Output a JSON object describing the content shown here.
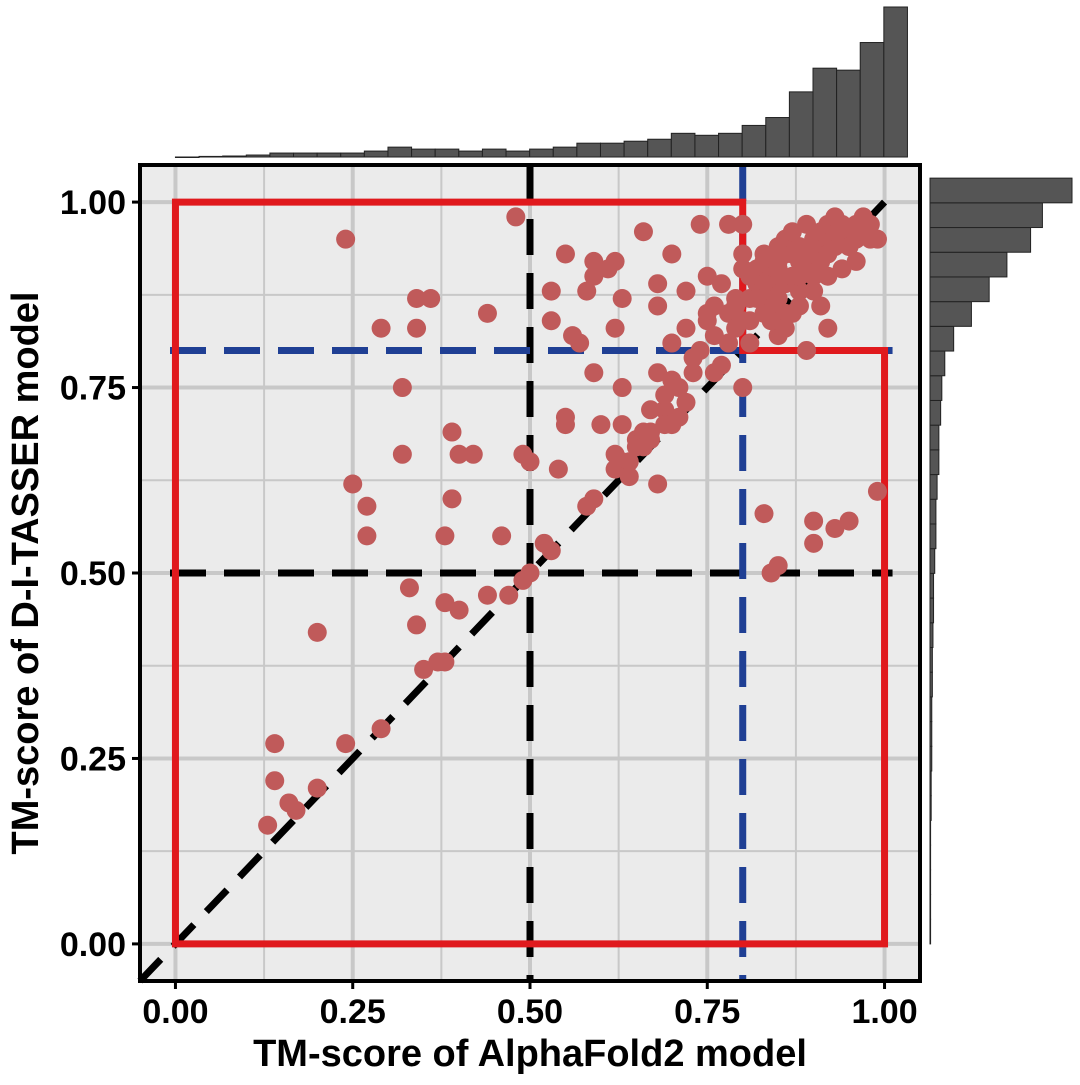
{
  "chart_data": {
    "type": "scatter",
    "xlabel": "TM-score of AlphaFold2 model",
    "ylabel": "TM-score of D-I-TASSER model",
    "xlim": [
      -0.05,
      1.05
    ],
    "ylim": [
      -0.05,
      1.05
    ],
    "xticks": [
      "0.00",
      "0.25",
      "0.50",
      "0.75",
      "1.00"
    ],
    "yticks": [
      "0.00",
      "0.25",
      "0.50",
      "0.75",
      "1.00"
    ],
    "grid": true,
    "colors": {
      "point": "#c05a5a",
      "region": "#e0191d",
      "cutoff_05": "#000000",
      "cutoff_08": "#1f3f94",
      "histogram": "#555555",
      "panel": "#ebebeb",
      "gridline": "#c8c8c8"
    },
    "reference_lines": {
      "diagonal": true,
      "cutoff_black": 0.5,
      "cutoff_blue": 0.8
    },
    "region_outline": [
      [
        0,
        0
      ],
      [
        0,
        1.0
      ],
      [
        0.8,
        1.0
      ],
      [
        0.8,
        0.8
      ],
      [
        1.0,
        0.8
      ],
      [
        1.0,
        0
      ]
    ],
    "x_histogram": {
      "bin_start": 0.0,
      "bin_width": 0.0333,
      "counts": [
        0,
        0.3,
        0.5,
        1,
        2,
        2,
        2,
        2,
        3,
        5,
        4,
        4,
        3,
        4,
        3,
        4,
        5,
        7,
        7,
        8,
        9,
        12,
        11,
        12,
        16,
        20,
        33,
        45,
        44,
        58,
        76
      ]
    },
    "y_histogram": {
      "bin_start": 0.0,
      "bin_width": 0.0333,
      "counts": [
        0.1,
        0.1,
        0.1,
        0.1,
        0.1,
        0.2,
        0.2,
        0.3,
        0.3,
        0.3,
        0.4,
        0.4,
        0.5,
        0.6,
        0.6,
        0.8,
        1.0,
        1.0,
        1.2,
        1.5,
        1.5,
        1.8,
        2.0,
        2.5,
        4.0,
        7.0,
        10,
        13,
        17,
        19,
        24
      ]
    },
    "points": [
      [
        0.13,
        0.16
      ],
      [
        0.14,
        0.27
      ],
      [
        0.14,
        0.22
      ],
      [
        0.16,
        0.19
      ],
      [
        0.17,
        0.18
      ],
      [
        0.2,
        0.21
      ],
      [
        0.2,
        0.42
      ],
      [
        0.24,
        0.27
      ],
      [
        0.25,
        0.62
      ],
      [
        0.24,
        0.95
      ],
      [
        0.27,
        0.59
      ],
      [
        0.27,
        0.55
      ],
      [
        0.29,
        0.83
      ],
      [
        0.29,
        0.29
      ],
      [
        0.32,
        0.75
      ],
      [
        0.32,
        0.66
      ],
      [
        0.33,
        0.48
      ],
      [
        0.34,
        0.87
      ],
      [
        0.36,
        0.87
      ],
      [
        0.34,
        0.83
      ],
      [
        0.34,
        0.43
      ],
      [
        0.35,
        0.37
      ],
      [
        0.37,
        0.38
      ],
      [
        0.38,
        0.38
      ],
      [
        0.38,
        0.55
      ],
      [
        0.38,
        0.46
      ],
      [
        0.39,
        0.6
      ],
      [
        0.39,
        0.69
      ],
      [
        0.4,
        0.66
      ],
      [
        0.42,
        0.66
      ],
      [
        0.4,
        0.45
      ],
      [
        0.44,
        0.85
      ],
      [
        0.44,
        0.47
      ],
      [
        0.46,
        0.55
      ],
      [
        0.47,
        0.47
      ],
      [
        0.48,
        0.98
      ],
      [
        0.49,
        0.49
      ],
      [
        0.49,
        0.66
      ],
      [
        0.5,
        0.65
      ],
      [
        0.5,
        0.5
      ],
      [
        0.52,
        0.54
      ],
      [
        0.53,
        0.53
      ],
      [
        0.53,
        0.84
      ],
      [
        0.53,
        0.88
      ],
      [
        0.54,
        0.64
      ],
      [
        0.55,
        0.93
      ],
      [
        0.55,
        0.71
      ],
      [
        0.55,
        0.7
      ],
      [
        0.56,
        0.82
      ],
      [
        0.57,
        0.81
      ],
      [
        0.58,
        0.59
      ],
      [
        0.58,
        0.88
      ],
      [
        0.59,
        0.92
      ],
      [
        0.59,
        0.9
      ],
      [
        0.59,
        0.77
      ],
      [
        0.59,
        0.6
      ],
      [
        0.6,
        0.7
      ],
      [
        0.61,
        0.91
      ],
      [
        0.62,
        0.92
      ],
      [
        0.62,
        0.83
      ],
      [
        0.62,
        0.66
      ],
      [
        0.62,
        0.64
      ],
      [
        0.63,
        0.87
      ],
      [
        0.63,
        0.75
      ],
      [
        0.63,
        0.65
      ],
      [
        0.63,
        0.7
      ],
      [
        0.64,
        0.65
      ],
      [
        0.64,
        0.63
      ],
      [
        0.65,
        0.68
      ],
      [
        0.65,
        0.67
      ],
      [
        0.66,
        0.96
      ],
      [
        0.66,
        0.69
      ],
      [
        0.66,
        0.67
      ],
      [
        0.67,
        0.72
      ],
      [
        0.67,
        0.69
      ],
      [
        0.67,
        0.68
      ],
      [
        0.68,
        0.62
      ],
      [
        0.68,
        0.77
      ],
      [
        0.68,
        0.89
      ],
      [
        0.68,
        0.86
      ],
      [
        0.69,
        0.72
      ],
      [
        0.69,
        0.74
      ],
      [
        0.69,
        0.7
      ],
      [
        0.7,
        0.93
      ],
      [
        0.7,
        0.76
      ],
      [
        0.7,
        0.81
      ],
      [
        0.7,
        0.7
      ],
      [
        0.71,
        0.71
      ],
      [
        0.71,
        0.75
      ],
      [
        0.72,
        0.83
      ],
      [
        0.72,
        0.88
      ],
      [
        0.72,
        0.73
      ],
      [
        0.73,
        0.79
      ],
      [
        0.73,
        0.77
      ],
      [
        0.74,
        0.97
      ],
      [
        0.74,
        0.8
      ],
      [
        0.75,
        0.84
      ],
      [
        0.75,
        0.85
      ],
      [
        0.75,
        0.9
      ],
      [
        0.76,
        0.82
      ],
      [
        0.76,
        0.77
      ],
      [
        0.77,
        0.89
      ],
      [
        0.77,
        0.78
      ],
      [
        0.78,
        0.81
      ],
      [
        0.78,
        0.85
      ],
      [
        0.79,
        0.87
      ],
      [
        0.79,
        0.83
      ],
      [
        0.8,
        0.75
      ],
      [
        0.8,
        0.97
      ],
      [
        0.8,
        0.93
      ],
      [
        0.81,
        0.81
      ],
      [
        0.81,
        0.84
      ],
      [
        0.81,
        0.87
      ],
      [
        0.82,
        0.89
      ],
      [
        0.82,
        0.91
      ],
      [
        0.83,
        0.85
      ],
      [
        0.83,
        0.92
      ],
      [
        0.83,
        0.93
      ],
      [
        0.84,
        0.86
      ],
      [
        0.84,
        0.88
      ],
      [
        0.84,
        0.9
      ],
      [
        0.85,
        0.94
      ],
      [
        0.85,
        0.87
      ],
      [
        0.85,
        0.91
      ],
      [
        0.86,
        0.89
      ],
      [
        0.86,
        0.93
      ],
      [
        0.86,
        0.95
      ],
      [
        0.87,
        0.9
      ],
      [
        0.87,
        0.85
      ],
      [
        0.87,
        0.96
      ],
      [
        0.88,
        0.92
      ],
      [
        0.88,
        0.88
      ],
      [
        0.88,
        0.94
      ],
      [
        0.89,
        0.91
      ],
      [
        0.89,
        0.93
      ],
      [
        0.89,
        0.97
      ],
      [
        0.9,
        0.93
      ],
      [
        0.9,
        0.95
      ],
      [
        0.9,
        0.9
      ],
      [
        0.91,
        0.94
      ],
      [
        0.91,
        0.96
      ],
      [
        0.91,
        0.92
      ],
      [
        0.92,
        0.95
      ],
      [
        0.92,
        0.97
      ],
      [
        0.92,
        0.93
      ],
      [
        0.93,
        0.94
      ],
      [
        0.93,
        0.96
      ],
      [
        0.93,
        0.98
      ],
      [
        0.94,
        0.95
      ],
      [
        0.94,
        0.97
      ],
      [
        0.95,
        0.96
      ],
      [
        0.95,
        0.94
      ],
      [
        0.96,
        0.97
      ],
      [
        0.96,
        0.95
      ],
      [
        0.97,
        0.96
      ],
      [
        0.97,
        0.98
      ],
      [
        0.98,
        0.97
      ],
      [
        0.98,
        0.95
      ],
      [
        0.99,
        0.95
      ],
      [
        0.83,
        0.89
      ],
      [
        0.85,
        0.82
      ],
      [
        0.86,
        0.85
      ],
      [
        0.84,
        0.84
      ],
      [
        0.88,
        0.86
      ],
      [
        0.9,
        0.88
      ],
      [
        0.92,
        0.83
      ],
      [
        0.89,
        0.8
      ],
      [
        0.86,
        0.83
      ],
      [
        0.85,
        0.92
      ],
      [
        0.82,
        0.87
      ],
      [
        0.81,
        0.9
      ],
      [
        0.8,
        0.84
      ],
      [
        0.83,
        0.58
      ],
      [
        0.84,
        0.5
      ],
      [
        0.85,
        0.51
      ],
      [
        0.9,
        0.57
      ],
      [
        0.9,
        0.54
      ],
      [
        0.93,
        0.56
      ],
      [
        0.95,
        0.57
      ],
      [
        0.99,
        0.61
      ],
      [
        0.78,
        0.97
      ],
      [
        0.76,
        0.86
      ],
      [
        0.91,
        0.86
      ],
      [
        0.87,
        0.93
      ],
      [
        0.94,
        0.91
      ],
      [
        0.96,
        0.92
      ],
      [
        0.92,
        0.9
      ],
      [
        0.88,
        0.9
      ],
      [
        0.8,
        0.91
      ],
      [
        0.79,
        0.86
      ]
    ]
  }
}
